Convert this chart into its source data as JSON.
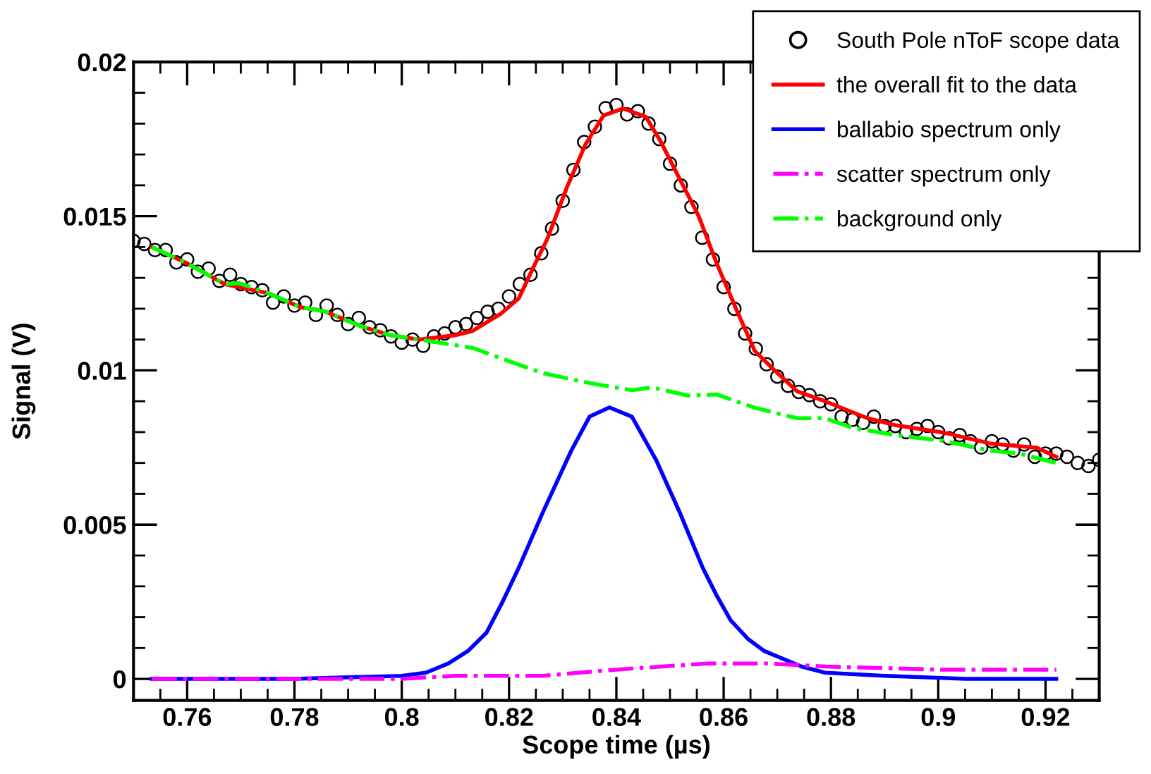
{
  "chart_data": {
    "type": "line",
    "xlabel": "Scope time (µs)",
    "ylabel": "Signal (V)",
    "xlim": [
      0.75,
      0.93
    ],
    "ylim": [
      -0.0007,
      0.02
    ],
    "xticks": [
      {
        "value": 0.755,
        "label": null
      },
      0.76,
      {
        "value": 0.765,
        "label": null
      },
      {
        "value": 0.77,
        "label": null
      },
      {
        "value": 0.775,
        "label": null
      },
      0.78,
      {
        "value": 0.785,
        "label": null
      },
      {
        "value": 0.79,
        "label": null
      },
      {
        "value": 0.795,
        "label": null
      },
      0.8,
      {
        "value": 0.805,
        "label": null
      },
      {
        "value": 0.81,
        "label": null
      },
      {
        "value": 0.815,
        "label": null
      },
      0.82,
      {
        "value": 0.825,
        "label": null
      },
      {
        "value": 0.83,
        "label": null
      },
      {
        "value": 0.835,
        "label": null
      },
      0.84,
      {
        "value": 0.845,
        "label": null
      },
      {
        "value": 0.85,
        "label": null
      },
      {
        "value": 0.855,
        "label": null
      },
      0.86,
      {
        "value": 0.865,
        "label": null
      },
      {
        "value": 0.87,
        "label": null
      },
      {
        "value": 0.875,
        "label": null
      },
      0.88,
      {
        "value": 0.885,
        "label": null
      },
      {
        "value": 0.89,
        "label": null
      },
      {
        "value": 0.895,
        "label": null
      },
      0.9,
      {
        "value": 0.905,
        "label": null
      },
      {
        "value": 0.91,
        "label": null
      },
      {
        "value": 0.915,
        "label": null
      },
      0.92,
      {
        "value": 0.925,
        "label": null
      }
    ],
    "yticks": [
      0,
      {
        "value": 0.001,
        "label": null
      },
      {
        "value": 0.002,
        "label": null
      },
      {
        "value": 0.003,
        "label": null
      },
      {
        "value": 0.004,
        "label": null
      },
      0.005,
      {
        "value": 0.006,
        "label": null
      },
      {
        "value": 0.007,
        "label": null
      },
      {
        "value": 0.008,
        "label": null
      },
      {
        "value": 0.009,
        "label": null
      },
      0.01,
      {
        "value": 0.011,
        "label": null
      },
      {
        "value": 0.012,
        "label": null
      },
      {
        "value": 0.013,
        "label": null
      },
      {
        "value": 0.014,
        "label": null
      },
      0.015,
      {
        "value": 0.016,
        "label": null
      },
      {
        "value": 0.017,
        "label": null
      },
      {
        "value": 0.018,
        "label": null
      },
      {
        "value": 0.019,
        "label": null
      },
      0.02
    ],
    "grid": false,
    "legend": "top right",
    "series": [
      {
        "name": "South Pole nToF scope data",
        "type": "scatter",
        "marker": "circle",
        "color": "#000000",
        "x": [
          0.75,
          0.752,
          0.754,
          0.756,
          0.758,
          0.76,
          0.762,
          0.764,
          0.766,
          0.768,
          0.77,
          0.772,
          0.774,
          0.776,
          0.778,
          0.78,
          0.782,
          0.784,
          0.786,
          0.788,
          0.79,
          0.792,
          0.794,
          0.796,
          0.798,
          0.8,
          0.802,
          0.804,
          0.806,
          0.808,
          0.81,
          0.812,
          0.814,
          0.816,
          0.818,
          0.82,
          0.822,
          0.824,
          0.826,
          0.828,
          0.83,
          0.832,
          0.834,
          0.836,
          0.838,
          0.84,
          0.842,
          0.844,
          0.846,
          0.848,
          0.85,
          0.852,
          0.854,
          0.856,
          0.858,
          0.86,
          0.862,
          0.864,
          0.866,
          0.868,
          0.87,
          0.872,
          0.874,
          0.876,
          0.878,
          0.88,
          0.882,
          0.884,
          0.886,
          0.888,
          0.89,
          0.892,
          0.894,
          0.896,
          0.898,
          0.9,
          0.902,
          0.904,
          0.906,
          0.908,
          0.91,
          0.912,
          0.914,
          0.916,
          0.918,
          0.92,
          0.922,
          0.924,
          0.926,
          0.928,
          0.93
        ],
        "values": [
          0.0142,
          0.0141,
          0.0139,
          0.0139,
          0.0135,
          0.0136,
          0.0132,
          0.0133,
          0.0129,
          0.0131,
          0.0128,
          0.0127,
          0.0126,
          0.0122,
          0.0124,
          0.0121,
          0.0122,
          0.0118,
          0.0121,
          0.0118,
          0.0115,
          0.0117,
          0.0114,
          0.0113,
          0.0111,
          0.0109,
          0.011,
          0.0108,
          0.0111,
          0.0112,
          0.0114,
          0.0115,
          0.0117,
          0.0119,
          0.012,
          0.0124,
          0.0128,
          0.0131,
          0.0138,
          0.0146,
          0.0155,
          0.0165,
          0.0174,
          0.0179,
          0.0185,
          0.0186,
          0.0183,
          0.0184,
          0.018,
          0.0175,
          0.0167,
          0.016,
          0.0153,
          0.0143,
          0.0136,
          0.0127,
          0.012,
          0.0112,
          0.0107,
          0.0102,
          0.0098,
          0.0095,
          0.0093,
          0.0092,
          0.009,
          0.0089,
          0.0085,
          0.0084,
          0.0083,
          0.0085,
          0.0082,
          0.0082,
          0.008,
          0.0081,
          0.0082,
          0.008,
          0.0078,
          0.0079,
          0.0077,
          0.0075,
          0.0077,
          0.0076,
          0.0074,
          0.0076,
          0.0072,
          0.0073,
          0.0073,
          0.0072,
          0.007,
          0.0069,
          0.0071
        ]
      },
      {
        "name": "the overall fit to the data",
        "line_style": "solid",
        "color": "#ff0000",
        "x": [
          0.7534,
          0.76,
          0.7671,
          0.775,
          0.7811,
          0.7855,
          0.7926,
          0.7979,
          0.8032,
          0.81,
          0.8132,
          0.8184,
          0.8218,
          0.8245,
          0.8271,
          0.8308,
          0.8342,
          0.8376,
          0.8413,
          0.8455,
          0.8482,
          0.8518,
          0.8553,
          0.8587,
          0.8624,
          0.8658,
          0.8692,
          0.8737,
          0.8789,
          0.8868,
          0.8921,
          0.9008,
          0.9097,
          0.9184,
          0.922
        ],
        "values": [
          0.014,
          0.01347,
          0.01279,
          0.01251,
          0.01205,
          0.01192,
          0.01142,
          0.01114,
          0.011,
          0.01114,
          0.01128,
          0.01183,
          0.01233,
          0.01333,
          0.01425,
          0.01594,
          0.01731,
          0.01826,
          0.01849,
          0.01822,
          0.01744,
          0.01621,
          0.01502,
          0.01347,
          0.01196,
          0.01063,
          0.01005,
          0.00932,
          0.009,
          0.00845,
          0.00822,
          0.00799,
          0.00763,
          0.00749,
          0.0072
        ]
      },
      {
        "name": "ballabio spectrum only",
        "line_style": "solid",
        "color": "#0000ff",
        "x": [
          0.7534,
          0.78,
          0.8,
          0.8045,
          0.8087,
          0.8123,
          0.8158,
          0.8188,
          0.8218,
          0.8263,
          0.8316,
          0.835,
          0.8387,
          0.8429,
          0.8474,
          0.8518,
          0.8561,
          0.8587,
          0.8613,
          0.8645,
          0.8676,
          0.8745,
          0.8789,
          0.89,
          0.905,
          0.922
        ],
        "values": [
          0,
          0,
          0.0001,
          0.0002,
          0.0005,
          0.0009,
          0.0015,
          0.0025,
          0.0036,
          0.0054,
          0.0074,
          0.0085,
          0.0088,
          0.0085,
          0.0071,
          0.0054,
          0.0036,
          0.0027,
          0.0019,
          0.0013,
          0.0009,
          0.0004,
          0.0002,
          0.0001,
          0,
          0
        ]
      },
      {
        "name": "scatter spectrum only",
        "line_style": "dashdot",
        "color": "#ff00ff",
        "x": [
          0.7534,
          0.78,
          0.8,
          0.81,
          0.8263,
          0.84,
          0.857,
          0.868,
          0.879,
          0.9,
          0.922
        ],
        "values": [
          0,
          0,
          0,
          0.0001,
          0.0001,
          0.0003,
          0.0005,
          0.0005,
          0.0004,
          0.0003,
          0.0003
        ]
      },
      {
        "name": "background only",
        "line_style": "dashdot",
        "color": "#00ff00",
        "x": [
          0.7534,
          0.76,
          0.7671,
          0.7697,
          0.775,
          0.7811,
          0.7855,
          0.7926,
          0.7979,
          0.8032,
          0.8132,
          0.8211,
          0.8263,
          0.835,
          0.8429,
          0.8466,
          0.8534,
          0.8587,
          0.8658,
          0.8737,
          0.8789,
          0.8842,
          0.8921,
          0.9008,
          0.9097,
          0.915,
          0.922
        ],
        "values": [
          0.014,
          0.01347,
          0.01279,
          0.01283,
          0.01251,
          0.01205,
          0.01192,
          0.01142,
          0.01114,
          0.011,
          0.01073,
          0.01023,
          0.00991,
          0.00959,
          0.00936,
          0.00945,
          0.00918,
          0.00922,
          0.00879,
          0.00845,
          0.00845,
          0.00813,
          0.0079,
          0.00772,
          0.0074,
          0.00731,
          0.007
        ]
      }
    ]
  }
}
